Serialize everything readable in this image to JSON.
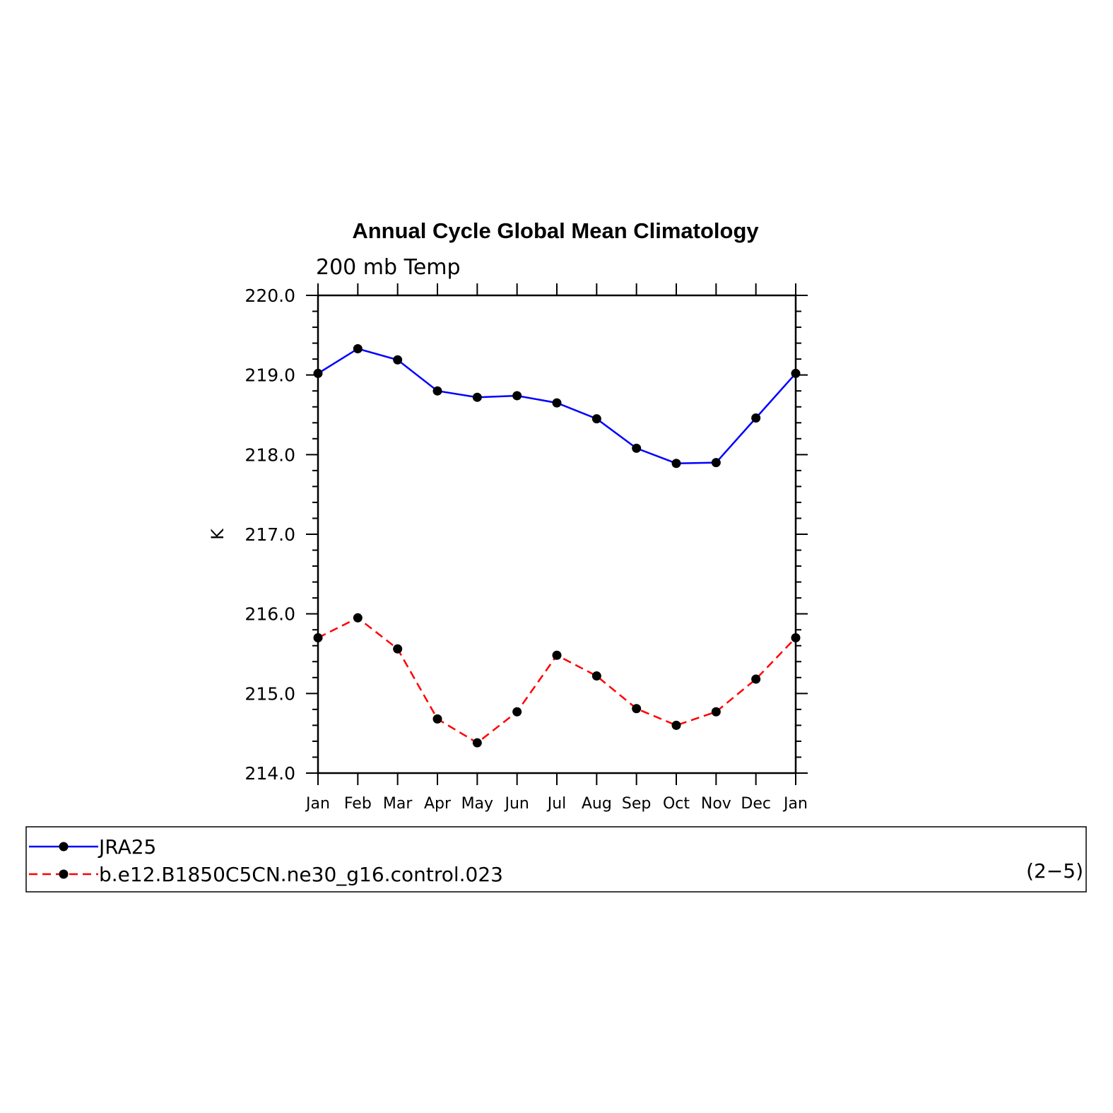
{
  "chart_data": {
    "type": "line",
    "title": "Annual Cycle Global Mean Climatology",
    "subtitle": "200 mb Temp",
    "ylabel": "K",
    "xlabel": "",
    "categories": [
      "Jan",
      "Feb",
      "Mar",
      "Apr",
      "May",
      "Jun",
      "Jul",
      "Aug",
      "Sep",
      "Oct",
      "Nov",
      "Dec",
      "Jan"
    ],
    "ylim": [
      214.0,
      220.0
    ],
    "yticks": [
      "214.0",
      "215.0",
      "216.0",
      "217.0",
      "218.0",
      "219.0",
      "220.0"
    ],
    "grid": false,
    "legend_position": "bottom",
    "series": [
      {
        "name": "JRA25",
        "color": "#0000ff",
        "dash": "solid",
        "values": [
          219.02,
          219.33,
          219.19,
          218.8,
          218.72,
          218.74,
          218.65,
          218.45,
          218.08,
          217.89,
          217.9,
          218.46,
          219.02
        ]
      },
      {
        "name": "b.e12.B1850C5CN.ne30_g16.control.023",
        "color": "#ff0000",
        "dash": "dashed",
        "values": [
          215.7,
          215.95,
          215.56,
          214.68,
          214.38,
          214.77,
          215.48,
          215.22,
          214.81,
          214.6,
          214.77,
          215.18,
          215.7
        ]
      }
    ]
  },
  "panel_label": "(2−5)"
}
